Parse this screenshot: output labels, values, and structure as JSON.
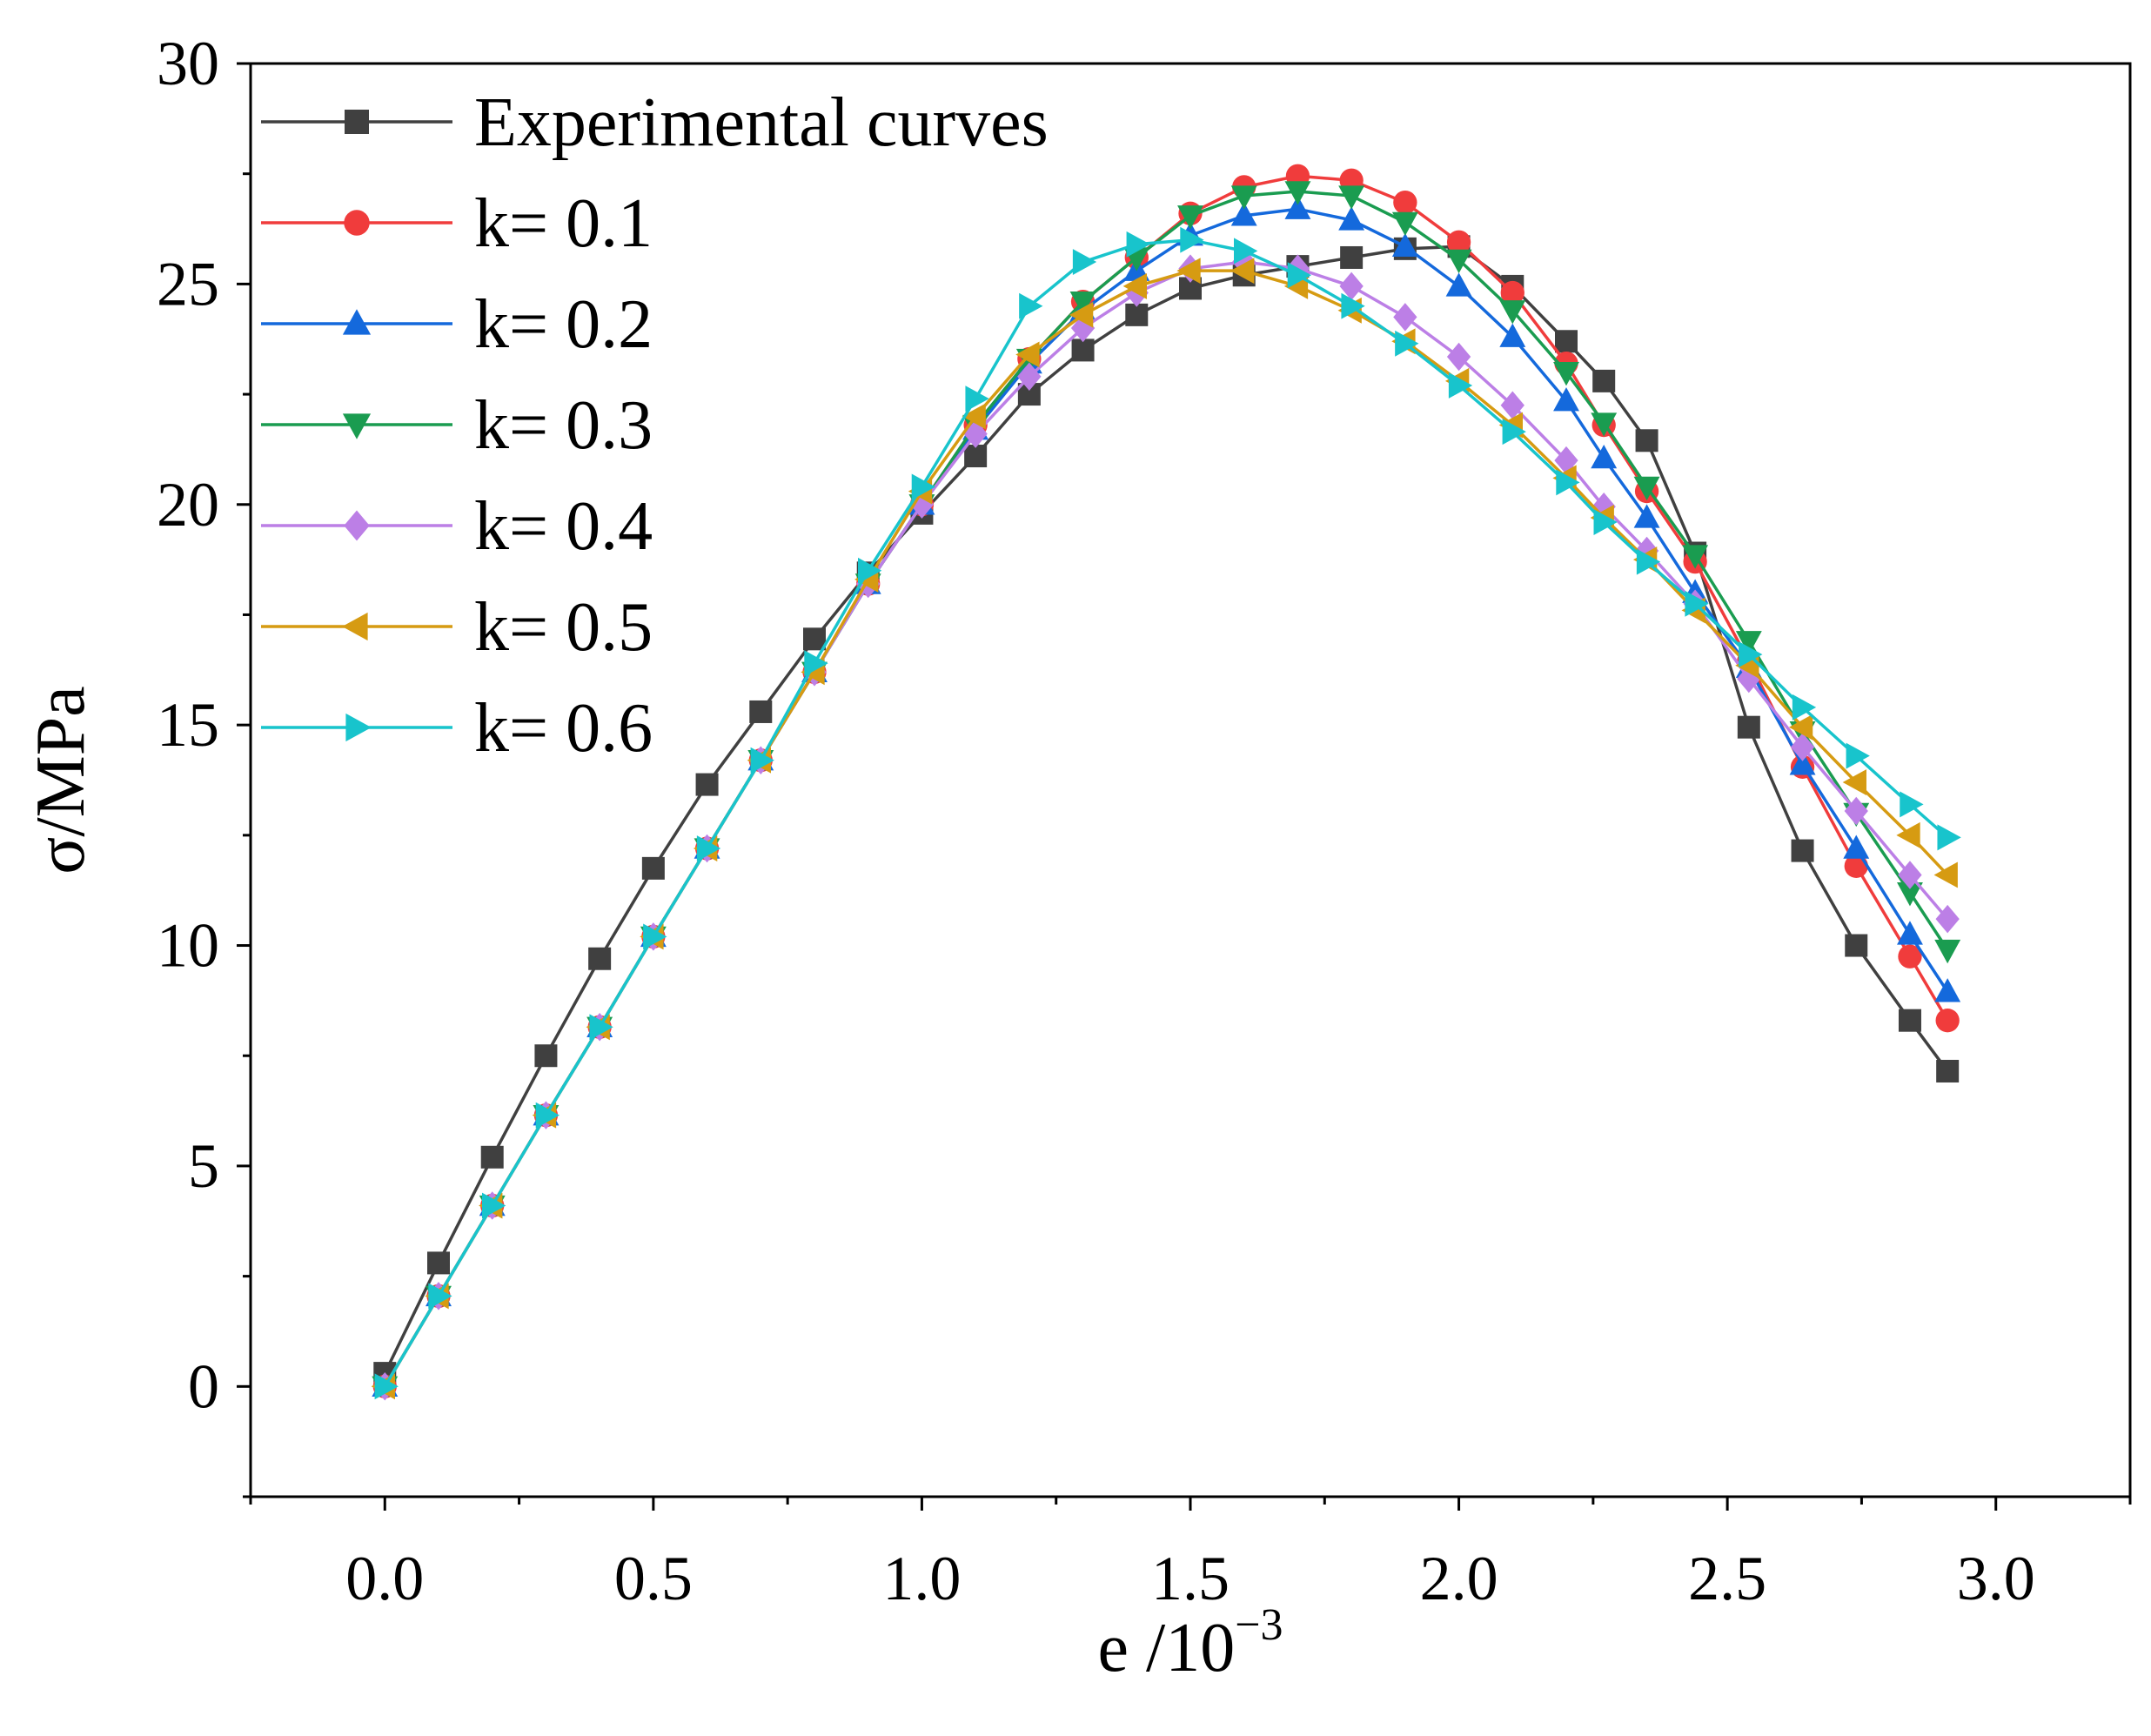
{
  "chart_data": {
    "type": "line",
    "title": "",
    "xlabel": "e /10",
    "xlabel_exponent": "−3",
    "ylabel": "σ/MPa",
    "xlim": [
      -0.25,
      3.25
    ],
    "ylim": [
      -2.5,
      30
    ],
    "xticks": [
      0.0,
      0.5,
      1.0,
      1.5,
      2.0,
      2.5,
      3.0
    ],
    "xtick_labels": [
      "0.0",
      "0.5",
      "1.0",
      "1.5",
      "2.0",
      "2.5",
      "3.0"
    ],
    "yticks": [
      0,
      5,
      10,
      15,
      20,
      25,
      30
    ],
    "ytick_labels": [
      "0",
      "5",
      "10",
      "15",
      "20",
      "25",
      "30"
    ],
    "grid": false,
    "legend_position": "top-left",
    "x_model": [
      0.0,
      0.1,
      0.2,
      0.3,
      0.4,
      0.5,
      0.6,
      0.7,
      0.8,
      0.9,
      1.0,
      1.1,
      1.2,
      1.3,
      1.4,
      1.5,
      1.6,
      1.7,
      1.8,
      1.9,
      2.0,
      2.1,
      2.2,
      2.27,
      2.35,
      2.44,
      2.54,
      2.64,
      2.74,
      2.84,
      2.91
    ],
    "series": [
      {
        "name": "Experimental curves",
        "color": "#404040",
        "marker": "square",
        "x": [
          0.0,
          0.1,
          0.2,
          0.3,
          0.4,
          0.5,
          0.6,
          0.7,
          0.8,
          0.9,
          1.0,
          1.1,
          1.2,
          1.3,
          1.4,
          1.5,
          1.6,
          1.7,
          1.8,
          1.9,
          2.0,
          2.1,
          2.2,
          2.27,
          2.35,
          2.44,
          2.54,
          2.64,
          2.74,
          2.84,
          2.91
        ],
        "values": [
          0.3,
          2.8,
          5.2,
          7.5,
          9.7,
          11.75,
          13.65,
          15.3,
          16.95,
          18.45,
          19.8,
          21.1,
          22.5,
          23.5,
          24.3,
          24.9,
          25.2,
          25.4,
          25.6,
          25.8,
          25.85,
          24.95,
          23.7,
          22.8,
          21.45,
          18.9,
          14.95,
          12.15,
          10.0,
          8.3,
          7.15
        ]
      },
      {
        "name": "k= 0.1",
        "color": "#f03c3c",
        "marker": "circle",
        "values": [
          0.0,
          2.05,
          4.1,
          6.15,
          8.15,
          10.2,
          12.2,
          14.2,
          16.2,
          18.2,
          20.0,
          21.8,
          23.3,
          24.6,
          25.6,
          26.6,
          27.2,
          27.45,
          27.35,
          26.85,
          25.95,
          24.8,
          23.2,
          21.8,
          20.3,
          18.7,
          16.45,
          14.05,
          11.8,
          9.75,
          8.3
        ]
      },
      {
        "name": "k= 0.2",
        "color": "#1469dc",
        "marker": "triangle-up",
        "values": [
          0.0,
          2.05,
          4.1,
          6.15,
          8.15,
          10.2,
          12.2,
          14.2,
          16.2,
          18.2,
          20.0,
          21.7,
          23.2,
          24.4,
          25.3,
          26.1,
          26.55,
          26.7,
          26.45,
          25.85,
          24.95,
          23.8,
          22.35,
          21.05,
          19.7,
          18.0,
          16.3,
          14.1,
          12.2,
          10.25,
          8.95
        ]
      },
      {
        "name": "k= 0.3",
        "color": "#1a9c50",
        "marker": "triangle-down",
        "values": [
          0.0,
          2.05,
          4.1,
          6.15,
          8.15,
          10.2,
          12.2,
          14.2,
          16.2,
          18.2,
          20.0,
          21.8,
          23.3,
          24.6,
          25.6,
          26.55,
          27.0,
          27.1,
          27.0,
          26.4,
          25.55,
          24.4,
          23.0,
          21.85,
          20.4,
          18.85,
          16.9,
          14.85,
          13.0,
          11.2,
          9.9
        ]
      },
      {
        "name": "k= 0.4",
        "color": "#bc7fe6",
        "marker": "diamond",
        "values": [
          0.0,
          2.05,
          4.1,
          6.15,
          8.15,
          10.2,
          12.2,
          14.2,
          16.2,
          18.2,
          20.0,
          21.6,
          22.9,
          24.0,
          24.8,
          25.35,
          25.5,
          25.35,
          24.95,
          24.25,
          23.35,
          22.25,
          21.0,
          19.95,
          18.95,
          17.75,
          16.05,
          14.5,
          13.05,
          11.6,
          10.6
        ]
      },
      {
        "name": "k= 0.5",
        "color": "#d69b12",
        "marker": "triangle-left",
        "values": [
          0.0,
          2.05,
          4.1,
          6.15,
          8.15,
          10.2,
          12.2,
          14.2,
          16.2,
          18.3,
          20.3,
          22.0,
          23.4,
          24.3,
          24.95,
          25.3,
          25.3,
          24.95,
          24.4,
          23.7,
          22.8,
          21.8,
          20.6,
          19.7,
          18.75,
          17.6,
          16.35,
          14.95,
          13.7,
          12.5,
          11.6
        ]
      },
      {
        "name": "k= 0.6",
        "color": "#18c4cc",
        "marker": "triangle-right",
        "values": [
          0.0,
          2.05,
          4.1,
          6.15,
          8.15,
          10.2,
          12.2,
          14.2,
          16.4,
          18.5,
          20.4,
          22.4,
          24.5,
          25.5,
          25.9,
          26.0,
          25.75,
          25.2,
          24.5,
          23.65,
          22.7,
          21.65,
          20.5,
          19.6,
          18.7,
          17.75,
          16.6,
          15.4,
          14.3,
          13.2,
          12.45
        ]
      }
    ]
  }
}
